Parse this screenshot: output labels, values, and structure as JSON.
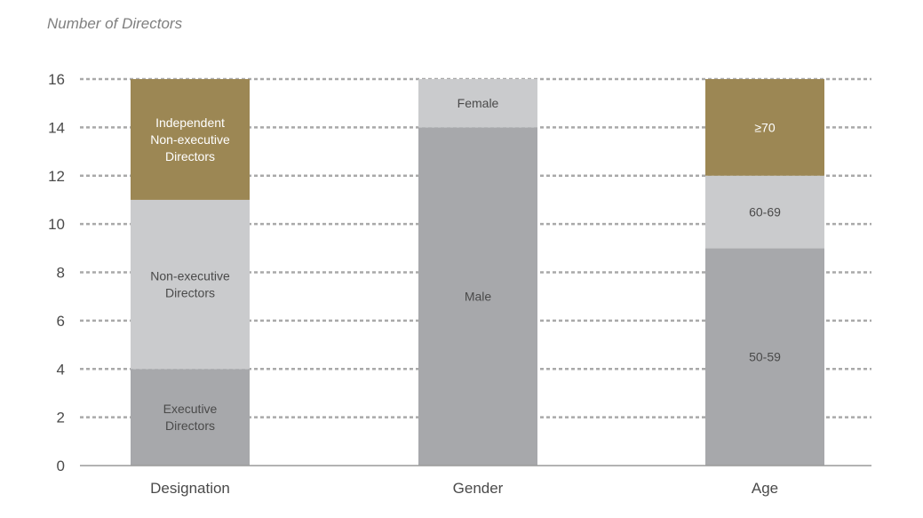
{
  "chart_data": {
    "type": "bar",
    "stacked": true,
    "ylabel": "Number of Directors",
    "ylim": [
      0,
      16
    ],
    "yticks": [
      0,
      2,
      4,
      6,
      8,
      10,
      12,
      14,
      16
    ],
    "grid": "dashed horizontal",
    "categories": [
      "Designation",
      "Gender",
      "Age"
    ],
    "stacks": [
      {
        "category": "Designation",
        "segments": [
          {
            "label": "Executive Directors",
            "value": 4,
            "color": "#a7a8ab"
          },
          {
            "label": "Non-executive Directors",
            "value": 7,
            "color": "#cacbcd"
          },
          {
            "label": "Independent Non-executive Directors",
            "value": 5,
            "color": "#9c8754"
          }
        ]
      },
      {
        "category": "Gender",
        "segments": [
          {
            "label": "Male",
            "value": 14,
            "color": "#a7a8ab"
          },
          {
            "label": "Female",
            "value": 2,
            "color": "#cacbcd"
          }
        ]
      },
      {
        "category": "Age",
        "segments": [
          {
            "label": "50-59",
            "value": 9,
            "color": "#a7a8ab"
          },
          {
            "label": "60-69",
            "value": 3,
            "color": "#cacbcd"
          },
          {
            "label": "≥70",
            "value": 4,
            "color": "#9c8754"
          }
        ]
      }
    ]
  }
}
